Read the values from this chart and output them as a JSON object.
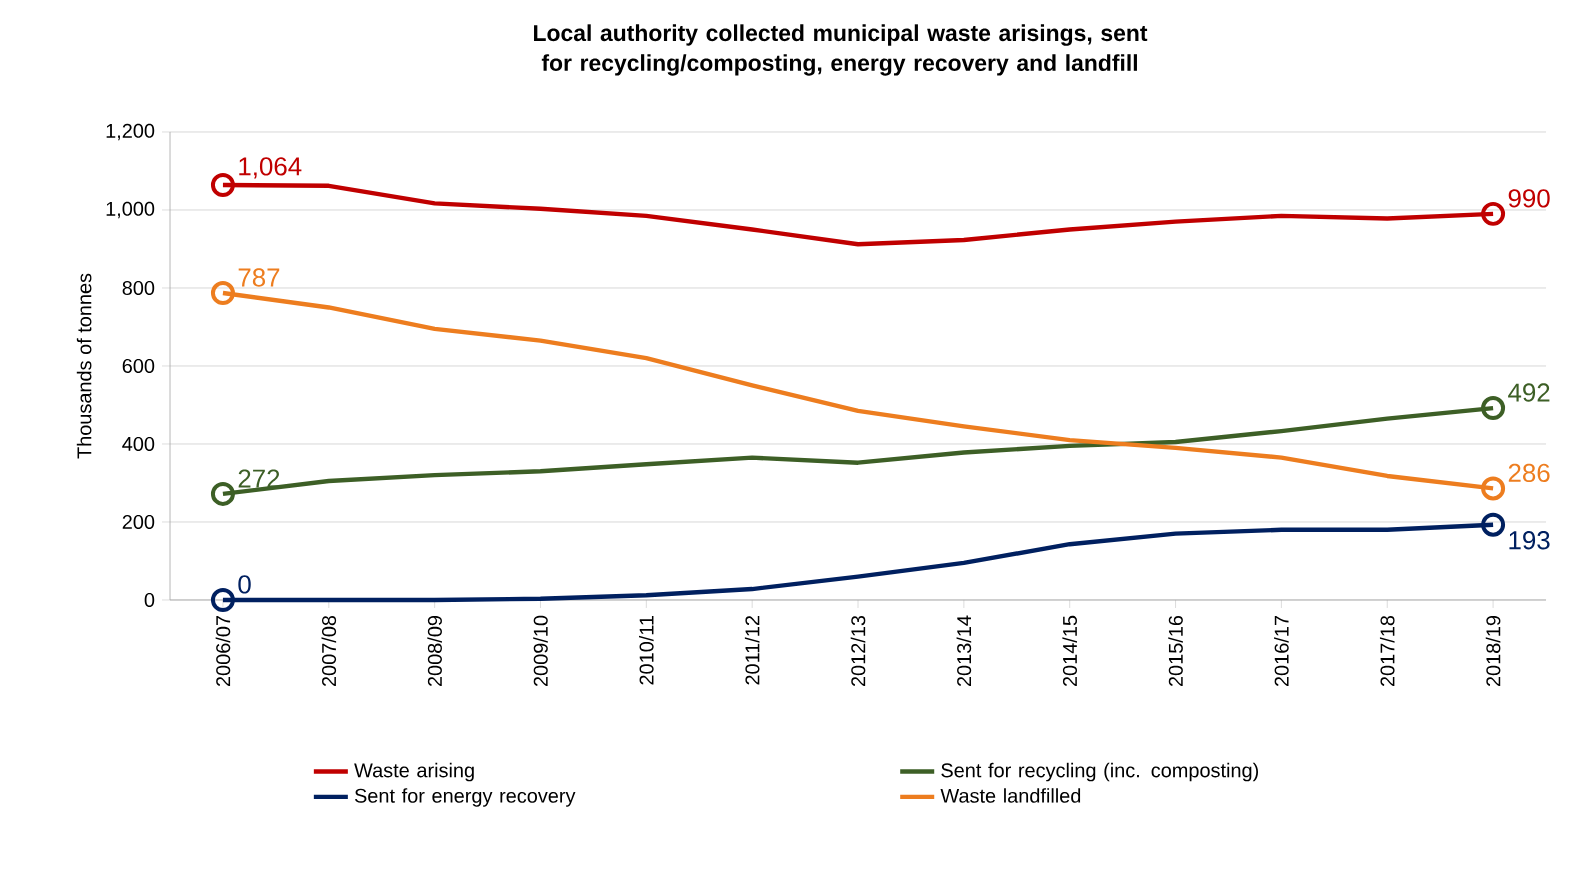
{
  "chart_data": {
    "type": "line",
    "title": "Local authority collected municipal waste arisings, sent for recycling/composting, energy recovery and landfill",
    "ylabel": "Thousands of tonnes",
    "categories": [
      "2006/07",
      "2007/08",
      "2008/09",
      "2009/10",
      "2010/11",
      "2011/12",
      "2012/13",
      "2013/14",
      "2014/15",
      "2015/16",
      "2016/17",
      "2017/18",
      "2018/19"
    ],
    "series": [
      {
        "name": "Waste arising",
        "color": "#c00000",
        "values": [
          1064,
          1062,
          1017,
          1003,
          985,
          950,
          912,
          923,
          950,
          970,
          985,
          978,
          990
        ],
        "value_labels": [
          "1,064",
          null,
          null,
          null,
          null,
          null,
          null,
          null,
          null,
          null,
          null,
          null,
          "990"
        ]
      },
      {
        "name": "Sent for recycling (inc. composting)",
        "color": "#3d5f26",
        "values": [
          272,
          305,
          320,
          330,
          348,
          365,
          352,
          378,
          395,
          405,
          433,
          465,
          492
        ],
        "value_labels": [
          "272",
          null,
          null,
          null,
          null,
          null,
          null,
          null,
          null,
          null,
          null,
          null,
          "492"
        ]
      },
      {
        "name": "Sent for energy recovery",
        "color": "#002060",
        "values": [
          0,
          0,
          0,
          3,
          12,
          28,
          60,
          95,
          143,
          170,
          180,
          180,
          193
        ],
        "value_labels": [
          "0",
          null,
          null,
          null,
          null,
          null,
          null,
          null,
          null,
          null,
          null,
          null,
          "193"
        ]
      },
      {
        "name": "Waste landfilled",
        "color": "#ed7d1f",
        "values": [
          787,
          750,
          695,
          665,
          620,
          550,
          485,
          445,
          410,
          390,
          365,
          318,
          286
        ],
        "value_labels": [
          "787",
          null,
          null,
          null,
          null,
          null,
          null,
          null,
          null,
          null,
          null,
          null,
          "286"
        ]
      }
    ],
    "ylim": [
      0,
      1200
    ],
    "yticks": [
      {
        "value": 0,
        "label": "0"
      },
      {
        "value": 200,
        "label": "200"
      },
      {
        "value": 400,
        "label": "400"
      },
      {
        "value": 600,
        "label": "600"
      },
      {
        "value": 800,
        "label": "800"
      },
      {
        "value": 1000,
        "label": "1,000"
      },
      {
        "value": 1200,
        "label": "1,200"
      }
    ],
    "grid": "y",
    "legend": "bottom",
    "line_style": "solid"
  }
}
